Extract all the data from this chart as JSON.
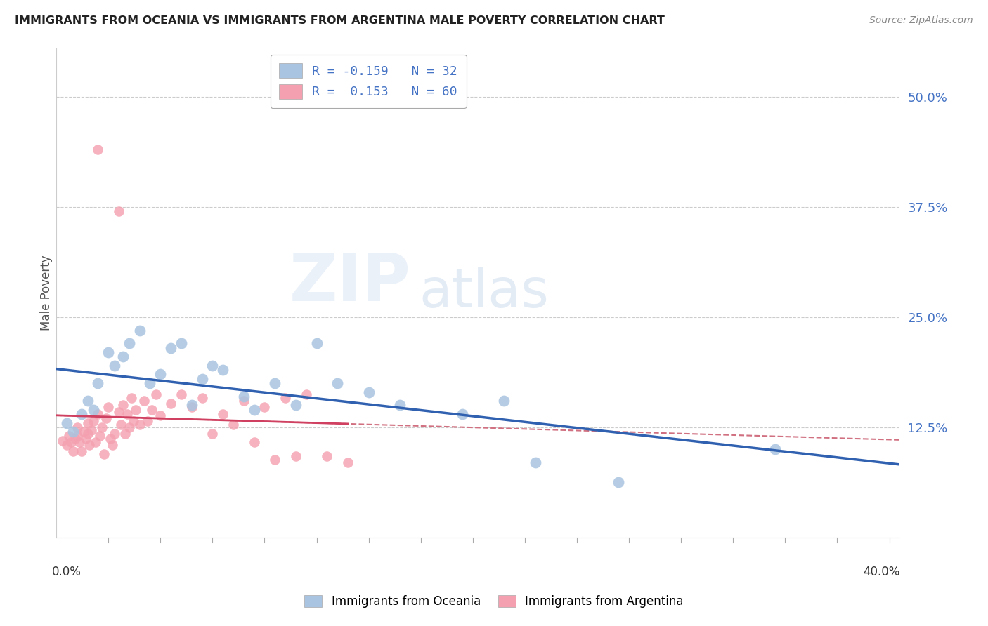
{
  "title": "IMMIGRANTS FROM OCEANIA VS IMMIGRANTS FROM ARGENTINA MALE POVERTY CORRELATION CHART",
  "source": "Source: ZipAtlas.com",
  "ylabel": "Male Poverty",
  "ytick_labels": [
    "12.5%",
    "25.0%",
    "37.5%",
    "50.0%"
  ],
  "ytick_values": [
    0.125,
    0.25,
    0.375,
    0.5
  ],
  "xlim": [
    0.0,
    0.405
  ],
  "ylim": [
    0.0,
    0.555
  ],
  "legend_line1": "R = -0.159   N = 32",
  "legend_line2": "R =  0.153   N = 60",
  "oceania_color": "#a8c4e0",
  "oceania_edge": "#7aaac8",
  "argentina_color": "#f4a0b0",
  "argentina_edge": "#e07080",
  "trendline_oceania_color": "#3060b0",
  "trendline_argentina_solid_color": "#d04060",
  "trendline_argentina_dash_color": "#d07080",
  "background_color": "#ffffff",
  "oceania_x": [
    0.005,
    0.008,
    0.012,
    0.015,
    0.018,
    0.02,
    0.025,
    0.028,
    0.032,
    0.035,
    0.04,
    0.045,
    0.05,
    0.055,
    0.06,
    0.065,
    0.07,
    0.075,
    0.08,
    0.09,
    0.095,
    0.105,
    0.115,
    0.125,
    0.135,
    0.15,
    0.165,
    0.195,
    0.215,
    0.23,
    0.27,
    0.345
  ],
  "oceania_y": [
    0.13,
    0.12,
    0.14,
    0.155,
    0.145,
    0.175,
    0.21,
    0.195,
    0.205,
    0.22,
    0.235,
    0.175,
    0.185,
    0.215,
    0.22,
    0.15,
    0.18,
    0.195,
    0.19,
    0.16,
    0.145,
    0.175,
    0.15,
    0.22,
    0.175,
    0.165,
    0.15,
    0.14,
    0.155,
    0.085,
    0.063,
    0.1
  ],
  "argentina_x": [
    0.003,
    0.005,
    0.006,
    0.007,
    0.008,
    0.009,
    0.01,
    0.01,
    0.011,
    0.012,
    0.013,
    0.014,
    0.015,
    0.015,
    0.016,
    0.017,
    0.018,
    0.019,
    0.02,
    0.021,
    0.022,
    0.023,
    0.024,
    0.025,
    0.026,
    0.027,
    0.028,
    0.03,
    0.031,
    0.032,
    0.033,
    0.034,
    0.035,
    0.036,
    0.037,
    0.038,
    0.04,
    0.042,
    0.044,
    0.046,
    0.048,
    0.05,
    0.055,
    0.06,
    0.065,
    0.07,
    0.075,
    0.08,
    0.085,
    0.09,
    0.095,
    0.1,
    0.105,
    0.11,
    0.115,
    0.12,
    0.13,
    0.14,
    0.02,
    0.03
  ],
  "argentina_y": [
    0.11,
    0.105,
    0.115,
    0.108,
    0.098,
    0.112,
    0.115,
    0.125,
    0.108,
    0.098,
    0.12,
    0.112,
    0.118,
    0.13,
    0.105,
    0.122,
    0.132,
    0.108,
    0.14,
    0.115,
    0.125,
    0.095,
    0.135,
    0.148,
    0.112,
    0.105,
    0.118,
    0.142,
    0.128,
    0.15,
    0.118,
    0.14,
    0.125,
    0.158,
    0.132,
    0.145,
    0.128,
    0.155,
    0.132,
    0.145,
    0.162,
    0.138,
    0.152,
    0.162,
    0.148,
    0.158,
    0.118,
    0.14,
    0.128,
    0.155,
    0.108,
    0.148,
    0.088,
    0.158,
    0.092,
    0.162,
    0.092,
    0.085,
    0.44,
    0.37
  ]
}
